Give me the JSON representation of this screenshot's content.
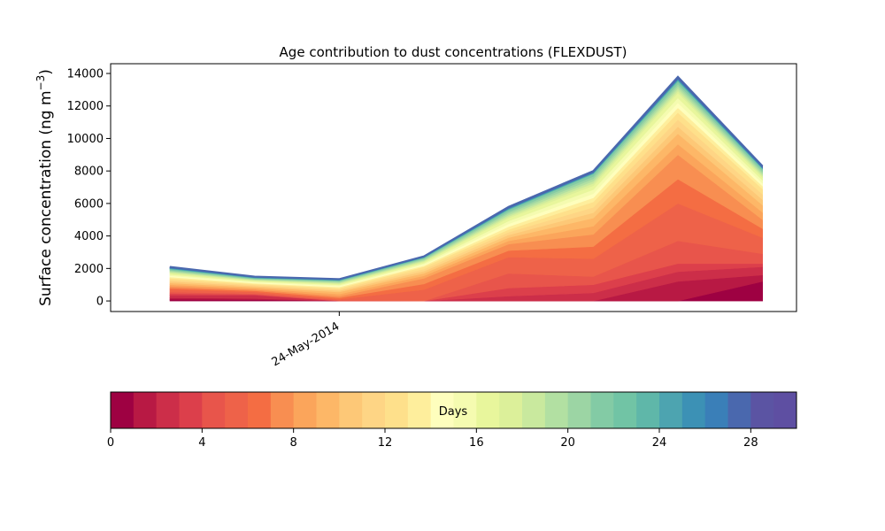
{
  "chart_data": {
    "type": "area",
    "title": "Age contribution to dust concentrations (FLEXDUST)",
    "ylabel": "Surface concentration (ng m",
    "ylabel_sup": "−3",
    "ylabel_close": ")",
    "xlabel": "",
    "ylim": [
      -650,
      14600
    ],
    "yticks": [
      0,
      2000,
      4000,
      6000,
      8000,
      10000,
      12000,
      14000
    ],
    "xtick_labels": [
      "24-May-2014"
    ],
    "x_index": [
      0,
      1,
      2,
      3,
      4,
      5,
      6,
      7
    ],
    "stack_top": [
      2100,
      1500,
      1350,
      2750,
      5800,
      8000,
      13800,
      8300
    ],
    "stack_boundaries": {
      "note_layers": "cumulative totals of the first k age classes (days)",
      "day_1": [
        100,
        80,
        0,
        0,
        0,
        0,
        0,
        1200
      ],
      "day_2": [
        200,
        150,
        0,
        0,
        0,
        0,
        1200,
        1600
      ],
      "day_3": [
        350,
        350,
        0,
        0,
        300,
        500,
        1800,
        2100
      ],
      "day_4": [
        450,
        400,
        0,
        0,
        800,
        1000,
        2300,
        2300
      ],
      "day_5": [
        550,
        450,
        50,
        0,
        1700,
        1500,
        3700,
        2900
      ],
      "day_6": [
        700,
        550,
        100,
        700,
        2700,
        2600,
        6000,
        3900
      ],
      "day_8": [
        900,
        700,
        300,
        1400,
        3500,
        4100,
        9000,
        5000
      ],
      "day_10": [
        1100,
        850,
        550,
        1700,
        3900,
        5100,
        10300,
        5900
      ],
      "day_13": [
        1400,
        1050,
        800,
        2100,
        4400,
        6100,
        11600,
        6900
      ],
      "day_17": [
        1700,
        1250,
        1050,
        2400,
        5100,
        7100,
        12800,
        7600
      ],
      "day_22": [
        1950,
        1400,
        1250,
        2650,
        5600,
        7800,
        13500,
        8100
      ]
    },
    "colorbar": {
      "label": "Days",
      "range": [
        0,
        30
      ],
      "ticks": [
        0,
        4,
        8,
        12,
        16,
        20,
        24,
        28
      ],
      "colors": [
        "#9e0142",
        "#b81944",
        "#cc2e49",
        "#dc3f4b",
        "#e8554b",
        "#ee6249",
        "#f46d43",
        "#f88e51",
        "#fba55b",
        "#fdb767",
        "#fdc877",
        "#fed585",
        "#fee08b",
        "#feee9c",
        "#fefebd",
        "#f5fbb0",
        "#e8f69c",
        "#dcf09a",
        "#c9e99e",
        "#b2e0a2",
        "#9cd5a4",
        "#83cba5",
        "#71c4a5",
        "#5fb7a9",
        "#4da4b0",
        "#3c91b5",
        "#3a7fb8",
        "#4a68ae",
        "#5b54a3",
        "#5e4fa2"
      ]
    },
    "grid": false,
    "legend": "colorbar-bottom"
  }
}
